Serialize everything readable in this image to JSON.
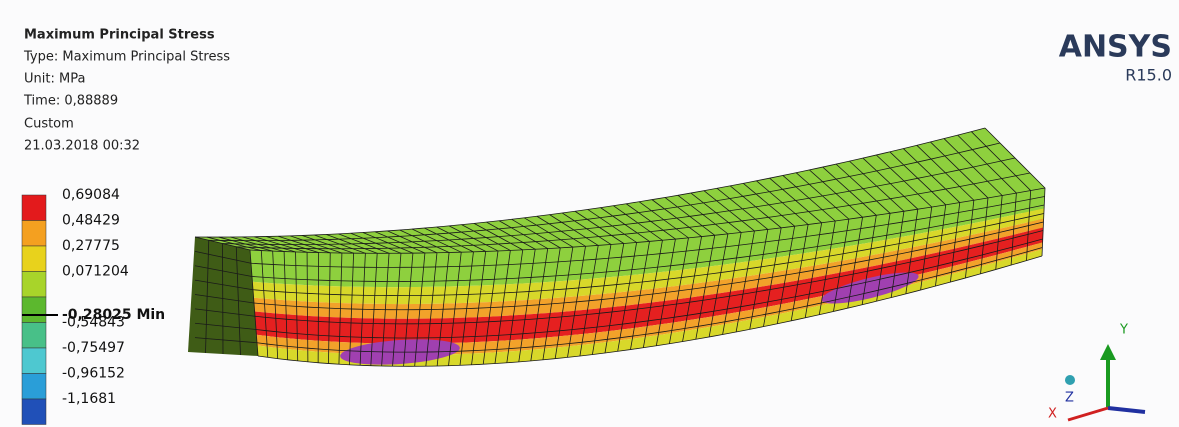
{
  "header": {
    "title": "Maximum Principal Stress",
    "type": "Type: Maximum Principal Stress",
    "unit": "Unit: MPa",
    "time": "Time: 0,88889",
    "mode": "Custom",
    "timestamp": "21.03.2018 00:32"
  },
  "legend": {
    "labels": [
      "0,69084",
      "0,48429",
      "0,27775",
      "0,071204",
      "-0,28025 Min",
      "-0,54843",
      "-0,75497",
      "-0,96152",
      "-1,1681"
    ]
  },
  "logo": {
    "name": "ANSYS",
    "version": "R15.0"
  },
  "triad": {
    "y": "Y",
    "z": "Z",
    "x": "X"
  }
}
